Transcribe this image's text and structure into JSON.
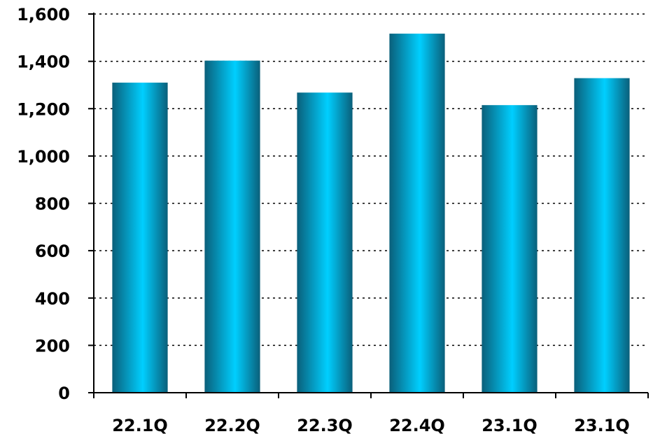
{
  "chart_data": {
    "type": "bar",
    "title": "",
    "xlabel": "",
    "ylabel": "",
    "categories": [
      "22.1Q",
      "22.2Q",
      "22.3Q",
      "22.4Q",
      "23.1Q",
      "23.1Q"
    ],
    "values": [
      1310,
      1403,
      1268,
      1517,
      1215,
      1329
    ],
    "ylim": [
      0,
      1600
    ],
    "yticks": [
      0,
      200,
      400,
      600,
      800,
      1000,
      1200,
      1400,
      1600
    ],
    "ytick_labels": [
      "0",
      "200",
      "400",
      "600",
      "800",
      "1,000",
      "1,200",
      "1,400",
      "1,600"
    ],
    "grid": true,
    "legend": "none",
    "colors": {
      "bar_light": "#00CFFF",
      "bar_dark": "#0A5F7A",
      "axis": "#000000",
      "grid": "#000000"
    }
  }
}
